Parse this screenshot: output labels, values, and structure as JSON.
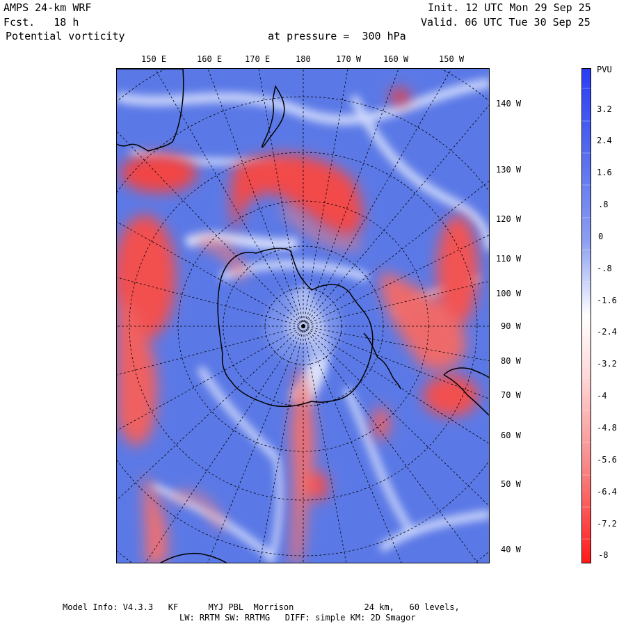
{
  "header": {
    "model": "AMPS 24-km WRF",
    "forecast": "Fcst.   18 h",
    "field": "Potential vorticity",
    "pressure": "at pressure =  300 hPa",
    "init": "Init. 12 UTC Mon 29 Sep 25",
    "valid": "Valid. 06 UTC Tue 30 Sep 25"
  },
  "map": {
    "top_longitude_labels": [
      "150 E",
      "160 E",
      "170 E",
      "180",
      "170 W",
      "160 W",
      "150 W"
    ],
    "right_longitude_labels": [
      "140 W",
      "130 W",
      "120 W",
      "110 W",
      "100 W",
      "90 W",
      "80 W",
      "70 W",
      "60 W",
      "50 W",
      "40 W"
    ],
    "colors": {
      "ocean_blue": "#5b79e6",
      "positive_red": "#f23a3a",
      "coastline": "#000000"
    }
  },
  "colorbar": {
    "unit": "PVU",
    "tick_labels": [
      "3.2",
      "2.4",
      "1.6",
      ".8",
      "0",
      "-.8",
      "-1.6",
      "-2.4",
      "-3.2",
      "-4",
      "-4.8",
      "-5.6",
      "-6.4",
      "-7.2",
      "-8"
    ],
    "max_color": "#2a3cf5",
    "mid_color": "#ffffff",
    "min_color": "#ff1a1a"
  },
  "footer": {
    "line1": "Model Info: V4.3.3   KF      MYJ PBL  Morrison              24 km,   60 levels,",
    "line2": "LW: RRTM SW: RRTMG   DIFF: simple KM: 2D Smagor"
  }
}
